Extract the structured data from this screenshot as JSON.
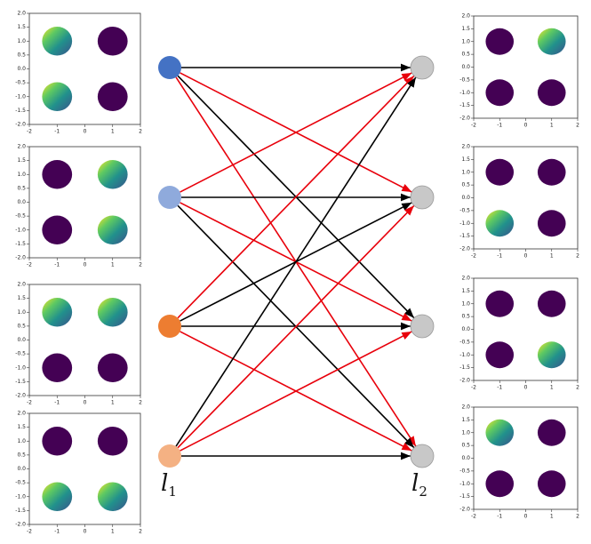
{
  "plot_axes": {
    "xlim": [
      -2,
      2
    ],
    "ylim": [
      -2,
      2
    ],
    "xticks": [
      -2,
      -1,
      0,
      1,
      2
    ],
    "yticks": [
      {
        "value": 2,
        "label": "2.0"
      },
      {
        "value": 1.5,
        "label": "1.5"
      },
      {
        "value": 1,
        "label": "1.0"
      },
      {
        "value": 0.5,
        "label": "0.5"
      },
      {
        "value": 0,
        "label": "0.0"
      },
      {
        "value": -0.5,
        "label": "-0.5"
      },
      {
        "value": -1,
        "label": "-1.0"
      },
      {
        "value": -1.5,
        "label": "-1.5"
      },
      {
        "value": -2,
        "label": "-2.0"
      }
    ],
    "clusters": [
      {
        "x": -1,
        "y": 1
      },
      {
        "x": 1,
        "y": 1
      },
      {
        "x": -1,
        "y": -1
      },
      {
        "x": 1,
        "y": -1
      }
    ],
    "inactive_color": "#440154"
  },
  "left_plots": [
    {
      "active": [
        0,
        2
      ]
    },
    {
      "active": [
        1,
        3
      ]
    },
    {
      "active": [
        0,
        1
      ]
    },
    {
      "active": [
        2,
        3
      ]
    }
  ],
  "right_plots": [
    {
      "active": [
        1
      ]
    },
    {
      "active": [
        2
      ]
    },
    {
      "active": [
        3
      ]
    },
    {
      "active": [
        0
      ]
    }
  ],
  "left_nodes": [
    {
      "color": "#4472c4"
    },
    {
      "color": "#8faadc"
    },
    {
      "color": "#ed7d31"
    },
    {
      "color": "#f4b183"
    }
  ],
  "right_nodes": [
    {
      "color": "#c8c8c8"
    },
    {
      "color": "#c8c8c8"
    },
    {
      "color": "#c8c8c8"
    },
    {
      "color": "#c8c8c8"
    }
  ],
  "edge_colors": [
    [
      "#000000",
      "#e8000b",
      "#000000",
      "#e8000b"
    ],
    [
      "#e8000b",
      "#000000",
      "#e8000b",
      "#000000"
    ],
    [
      "#e8000b",
      "#000000",
      "#000000",
      "#e8000b"
    ],
    [
      "#000000",
      "#e8000b",
      "#e8000b",
      "#000000"
    ]
  ],
  "layer_labels": [
    {
      "text": "l",
      "sub": "1"
    },
    {
      "text": "l",
      "sub": "2"
    }
  ]
}
